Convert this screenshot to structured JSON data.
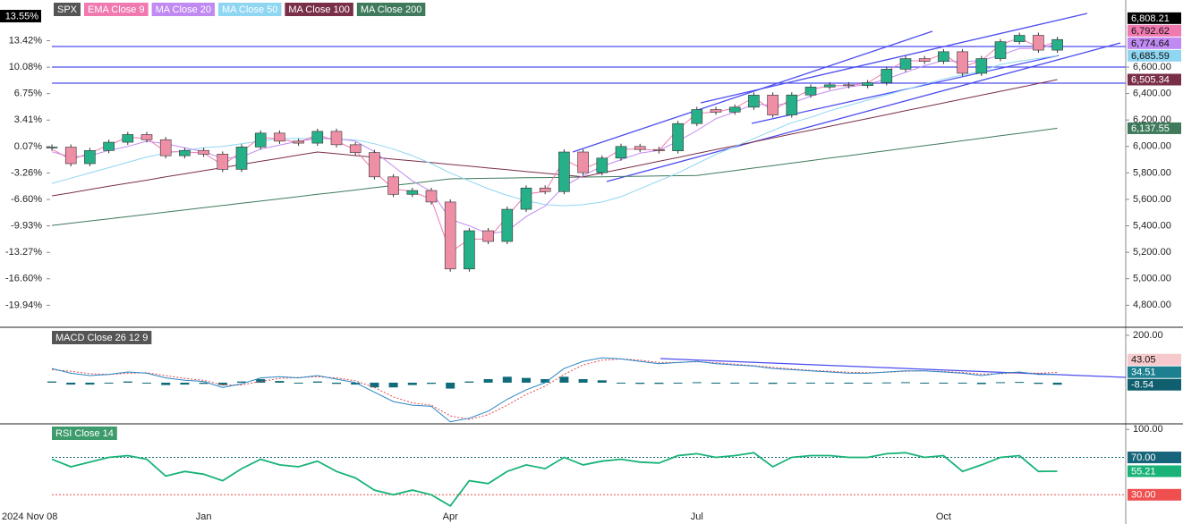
{
  "chart_data": [
    {
      "type": "candlestick",
      "categories": [
        "2024 Nov 08",
        null,
        null,
        null,
        null,
        null,
        null,
        null,
        "Jan",
        null,
        null,
        null,
        null,
        null,
        null,
        null,
        null,
        null,
        null,
        null,
        null,
        "Apr",
        null,
        null,
        null,
        null,
        null,
        null,
        null,
        null,
        null,
        null,
        null,
        null,
        "Jul",
        null,
        null,
        null,
        null,
        null,
        null,
        null,
        null,
        null,
        null,
        null,
        null,
        "Oct",
        null,
        null,
        null,
        null,
        null,
        null
      ],
      "up_color": "#26b089",
      "down_color": "#ef8fa6",
      "series": [
        {
          "name": "SPX",
          "color": "#000000",
          "label_color": "#ffffff",
          "last_label": "6,808.21",
          "values": [
            5995,
            5870,
            5969,
            6032,
            6090,
            6051,
            5930,
            5970,
            5942,
            5827,
            5996,
            6101,
            6040,
            6025,
            6114,
            6013,
            5954,
            5770,
            5638,
            5667,
            5580,
            5074,
            5363,
            5282,
            5525,
            5686,
            5659,
            5958,
            5802,
            5912,
            6000,
            5977,
            5967,
            6173,
            6279,
            6260,
            6297,
            6388,
            6238,
            6389,
            6449,
            6466,
            6460,
            6482,
            6584,
            6664,
            6643,
            6716,
            6553,
            6664,
            6792,
            6840,
            6728,
            6808.21
          ]
        },
        {
          "name": "EMA Close 9",
          "color": "#f07ab0",
          "label_color": "#111111",
          "last_label": "6,792.62",
          "values": [
            5980,
            5900,
            5950,
            6010,
            6070,
            6060,
            5960,
            5960,
            5950,
            5860,
            5960,
            6070,
            6055,
            6030,
            6090,
            6040,
            5975,
            5810,
            5680,
            5660,
            5600,
            5200,
            5300,
            5300,
            5470,
            5640,
            5660,
            5900,
            5830,
            5890,
            5980,
            5980,
            5970,
            6130,
            6250,
            6260,
            6290,
            6370,
            6270,
            6360,
            6430,
            6460,
            6460,
            6480,
            6570,
            6650,
            6645,
            6700,
            6600,
            6650,
            6770,
            6820,
            6750,
            6792.62
          ]
        },
        {
          "name": "MA Close 20",
          "color": "#c08af2",
          "label_color": "#111111",
          "last_label": "6,774.64",
          "values": [
            5960,
            5920,
            5930,
            5970,
            6000,
            6040,
            6020,
            5990,
            5960,
            5910,
            5920,
            5980,
            6010,
            6040,
            6060,
            6060,
            6040,
            5960,
            5850,
            5740,
            5660,
            5450,
            5400,
            5340,
            5360,
            5470,
            5550,
            5700,
            5780,
            5850,
            5900,
            5950,
            5970,
            6040,
            6120,
            6210,
            6260,
            6320,
            6310,
            6330,
            6380,
            6420,
            6450,
            6470,
            6510,
            6560,
            6610,
            6650,
            6640,
            6650,
            6690,
            6740,
            6740,
            6774.64
          ]
        },
        {
          "name": "MA Close 50",
          "color": "#8fd6f2",
          "label_color": "#111111",
          "last_label": "6,685.59",
          "values": [
            5721,
            5760,
            5800,
            5840,
            5880,
            5920,
            5950,
            5970,
            5990,
            6000,
            6020,
            6040,
            6060,
            6060,
            6060,
            6055,
            6050,
            6020,
            5980,
            5930,
            5870,
            5800,
            5740,
            5680,
            5630,
            5590,
            5560,
            5552,
            5560,
            5580,
            5620,
            5680,
            5740,
            5800,
            5870,
            5940,
            6000,
            6060,
            6120,
            6180,
            6220,
            6270,
            6310,
            6350,
            6390,
            6430,
            6470,
            6510,
            6540,
            6570,
            6620,
            6645,
            6665,
            6685.59
          ]
        },
        {
          "name": "MA Close 100",
          "color": "#7a2f48",
          "label_color": "#ffffff",
          "last_label": "6,505.34",
          "values": [
            5627,
            5650,
            5675,
            5700,
            5722,
            5745,
            5770,
            5793,
            5817,
            5840,
            5864,
            5888,
            5911,
            5935,
            5958,
            5945,
            5931,
            5918,
            5904,
            5891,
            5878,
            5864,
            5851,
            5837,
            5824,
            5810,
            5797,
            5784,
            5770,
            5800,
            5829,
            5858,
            5888,
            5917,
            5947,
            5976,
            6005,
            6035,
            6064,
            6094,
            6123,
            6152,
            6182,
            6211,
            6240,
            6270,
            6299,
            6329,
            6358,
            6388,
            6417,
            6446,
            6476,
            6505.34
          ]
        },
        {
          "name": "MA Close 200",
          "color": "#3f7a5c",
          "label_color": "#ffffff",
          "last_label": "6,137.55",
          "values": [
            5403,
            5420,
            5437,
            5453,
            5470,
            5487,
            5504,
            5520,
            5537,
            5554,
            5571,
            5587,
            5604,
            5621,
            5638,
            5654,
            5671,
            5688,
            5705,
            5721,
            5738,
            5755,
            5757,
            5759,
            5761,
            5763,
            5765,
            5767,
            5769,
            5771,
            5773,
            5775,
            5777,
            5779,
            5780,
            5799,
            5818,
            5837,
            5855,
            5874,
            5893,
            5912,
            5930,
            5949,
            5968,
            5987,
            6006,
            6024,
            6043,
            6062,
            6081,
            6099,
            6118,
            6137.55
          ]
        }
      ],
      "ylim": [
        4640,
        7107
      ],
      "yticks": [
        {
          "value": 4800,
          "label": "4,800.00"
        },
        {
          "value": 5000,
          "label": "5,000.00"
        },
        {
          "value": 5200,
          "label": "5,200.00"
        },
        {
          "value": 5400,
          "label": "5,400.00"
        },
        {
          "value": 5600,
          "label": "5,600.00"
        },
        {
          "value": 5800,
          "label": "5,800.00"
        },
        {
          "value": 6000,
          "label": "6,000.00"
        },
        {
          "value": 6200,
          "label": "6,200.00"
        },
        {
          "value": 6400,
          "label": "6,400.00"
        },
        {
          "value": 6600,
          "label": "6,600.00"
        }
      ],
      "y2lim": [
        -22.6,
        18.55
      ],
      "y2ticks": [
        {
          "value": -19.94,
          "label": "-19.94%"
        },
        {
          "value": -16.6,
          "label": "-16.60%"
        },
        {
          "value": -13.27,
          "label": "-13.27%"
        },
        {
          "value": -9.93,
          "label": "-9.93%"
        },
        {
          "value": -6.6,
          "label": "-6.60%"
        },
        {
          "value": -3.26,
          "label": "-3.26%"
        },
        {
          "value": 0.07,
          "label": "0.07%"
        },
        {
          "value": 3.41,
          "label": "3.41%"
        },
        {
          "value": 6.75,
          "label": "6.75%"
        },
        {
          "value": 10.08,
          "label": "10.08%"
        },
        {
          "value": 13.42,
          "label": "13.42%"
        }
      ],
      "change_label": {
        "value": 13.55,
        "label": "13.55%"
      }
    },
    {
      "type": "macd",
      "title": "MACD Close 26 12 9",
      "ylim": [
        -170,
        230
      ],
      "yticks": [
        {
          "value": 200,
          "label": "200.00"
        }
      ],
      "histogram": {
        "color": "#0f6b7a",
        "label_bg": "#0f5f6e",
        "values": [
          5,
          -8,
          -8,
          0,
          5,
          -2,
          -10,
          -8,
          -5,
          -10,
          5,
          15,
          7,
          -2,
          5,
          -5,
          -8,
          -20,
          -20,
          -10,
          -5,
          -25,
          5,
          15,
          25,
          20,
          15,
          25,
          15,
          10,
          0,
          -5,
          -5,
          0,
          2,
          -4,
          -3,
          -2,
          -5,
          -3,
          -2,
          -3,
          -4,
          -2,
          1,
          2,
          0,
          -2,
          -3,
          -6,
          2,
          3,
          -5,
          -8.54
        ]
      },
      "macd": {
        "color": "#2a86c4",
        "label_bg": "#1c8090",
        "values": [
          60,
          40,
          30,
          35,
          45,
          40,
          20,
          10,
          5,
          -20,
          -5,
          20,
          25,
          20,
          30,
          15,
          0,
          -40,
          -80,
          -95,
          -100,
          -165,
          -150,
          -120,
          -70,
          -30,
          0,
          60,
          90,
          105,
          100,
          90,
          80,
          85,
          90,
          80,
          75,
          70,
          60,
          55,
          50,
          45,
          40,
          40,
          45,
          50,
          50,
          45,
          40,
          30,
          40,
          45,
          35,
          34.51
        ]
      },
      "signal": {
        "color": "#e04a4a",
        "label_bg": "#f6c9cc",
        "values": [
          55,
          48,
          38,
          35,
          40,
          42,
          30,
          18,
          10,
          -10,
          -10,
          5,
          18,
          22,
          25,
          20,
          8,
          -20,
          -60,
          -85,
          -95,
          -140,
          -155,
          -135,
          -95,
          -50,
          -15,
          35,
          75,
          95,
          100,
          95,
          85,
          85,
          88,
          84,
          78,
          72,
          65,
          58,
          52,
          48,
          44,
          42,
          44,
          48,
          50,
          47,
          43,
          36,
          38,
          42,
          40,
          43.05
        ]
      }
    },
    {
      "type": "line",
      "title": "RSI Close 14",
      "ylim": [
        14,
        105
      ],
      "yticks": [
        {
          "value": 100,
          "label": "100.00"
        }
      ],
      "levels": [
        {
          "value": 70,
          "label": "70.00",
          "color": "#17657a"
        },
        {
          "value": 30,
          "label": "30.00",
          "color": "#ef4f4f"
        }
      ],
      "series": [
        {
          "color": "#19b378",
          "values": [
            68,
            60,
            65,
            70,
            72,
            68,
            50,
            55,
            52,
            45,
            58,
            68,
            62,
            60,
            66,
            55,
            48,
            35,
            30,
            35,
            30,
            18,
            45,
            42,
            55,
            62,
            58,
            70,
            62,
            66,
            68,
            65,
            64,
            72,
            74,
            70,
            72,
            75,
            60,
            70,
            72,
            72,
            70,
            70,
            74,
            75,
            70,
            72,
            55,
            62,
            70,
            72,
            55,
            55.21
          ]
        }
      ]
    }
  ]
}
